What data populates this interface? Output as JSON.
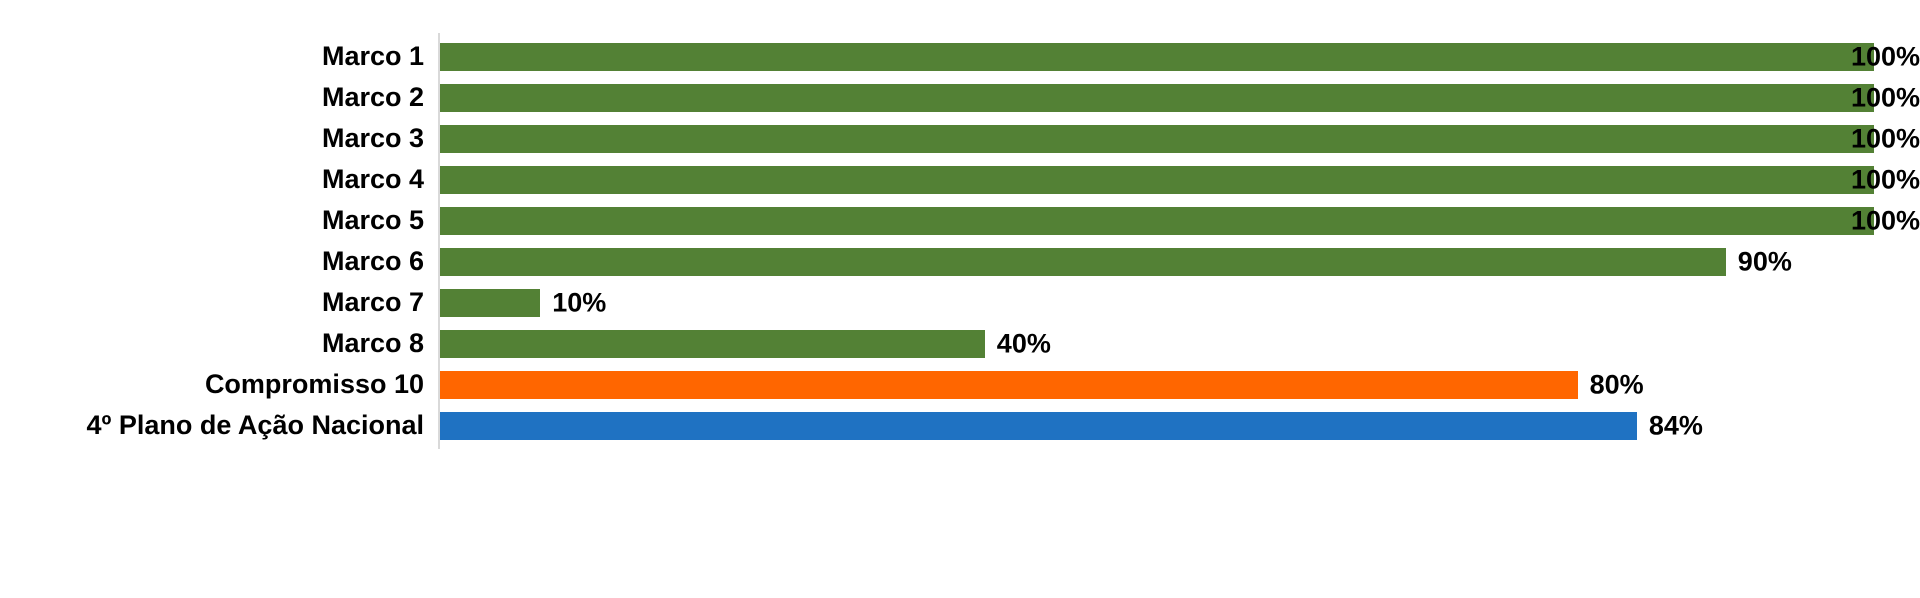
{
  "chart_data": {
    "type": "bar",
    "orientation": "horizontal",
    "title": "",
    "xlabel": "",
    "ylabel": "",
    "xlim": [
      0,
      100
    ],
    "grid": false,
    "legend": false,
    "value_suffix": "%",
    "categories": [
      "Marco 1",
      "Marco 2",
      "Marco 3",
      "Marco 4",
      "Marco 5",
      "Marco 6",
      "Marco 7",
      "Marco 8",
      "Compromisso 10",
      "4º Plano de Ação Nacional"
    ],
    "values": [
      100,
      100,
      100,
      100,
      100,
      90,
      10,
      40,
      80,
      84
    ],
    "value_labels": [
      "100%",
      "100%",
      "100%",
      "100%",
      "100%",
      "90%",
      "10%",
      "40%",
      "80%",
      "84%"
    ],
    "bar_colors": [
      "#538135",
      "#538135",
      "#538135",
      "#538135",
      "#538135",
      "#538135",
      "#538135",
      "#538135",
      "#FF6600",
      "#1F72C2"
    ],
    "colors": {
      "green": "#538135",
      "orange": "#FF6600",
      "blue": "#1F72C2",
      "axis_line": "#d9d9d9",
      "text": "#000000"
    }
  }
}
